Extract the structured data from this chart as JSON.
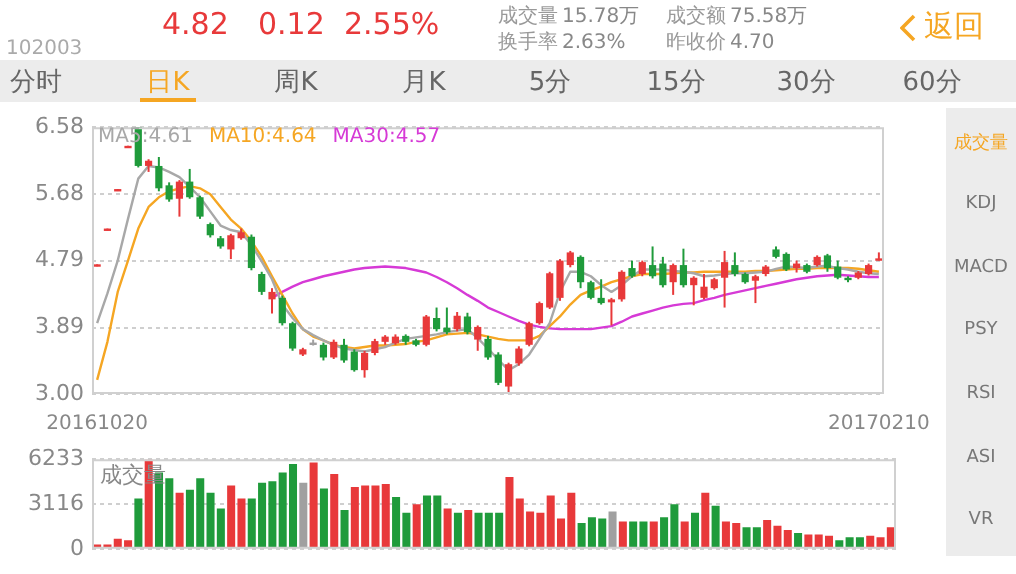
{
  "chart_data": [
    {
      "type": "candlestick",
      "categories": [
        "20161020",
        null,
        null,
        null,
        null,
        null,
        null,
        null,
        null,
        null,
        null,
        null,
        null,
        null,
        null,
        null,
        null,
        null,
        null,
        null,
        null,
        null,
        null,
        null,
        null,
        null,
        null,
        null,
        null,
        null,
        null,
        null,
        null,
        null,
        null,
        null,
        null,
        null,
        null,
        null,
        null,
        null,
        null,
        null,
        null,
        null,
        null,
        null,
        null,
        null,
        null,
        null,
        null,
        null,
        null,
        null,
        null,
        null,
        null,
        null,
        null,
        null,
        null,
        null,
        null,
        null,
        null,
        null,
        null,
        null,
        null,
        null,
        null,
        null,
        null,
        null,
        "20170210"
      ],
      "ohlc": [
        [
          4.72,
          4.74,
          4.72,
          4.74
        ],
        [
          5.2,
          5.22,
          5.2,
          5.22
        ],
        [
          5.73,
          5.75,
          5.73,
          5.75
        ],
        [
          6.31,
          6.33,
          6.31,
          6.33
        ],
        [
          6.58,
          6.58,
          6.04,
          6.06
        ],
        [
          6.06,
          6.15,
          5.98,
          6.13
        ],
        [
          6.06,
          6.18,
          5.72,
          5.76
        ],
        [
          5.8,
          5.84,
          5.58,
          5.61
        ],
        [
          5.62,
          5.87,
          5.38,
          5.85
        ],
        [
          5.85,
          6.02,
          5.62,
          5.64
        ],
        [
          5.64,
          5.66,
          5.35,
          5.38
        ],
        [
          5.28,
          5.3,
          5.1,
          5.13
        ],
        [
          5.09,
          5.12,
          4.95,
          4.98
        ],
        [
          4.94,
          5.15,
          4.81,
          5.13
        ],
        [
          5.09,
          5.22,
          5.07,
          5.17
        ],
        [
          5.11,
          5.14,
          4.66,
          4.69
        ],
        [
          4.61,
          4.64,
          4.33,
          4.37
        ],
        [
          4.27,
          4.42,
          4.08,
          4.37
        ],
        [
          4.29,
          4.32,
          3.92,
          3.95
        ],
        [
          3.95,
          3.97,
          3.58,
          3.61
        ],
        [
          3.53,
          3.62,
          3.51,
          3.6
        ],
        [
          3.69,
          3.73,
          3.65,
          3.69
        ],
        [
          3.66,
          3.69,
          3.45,
          3.49
        ],
        [
          3.49,
          3.73,
          3.47,
          3.7
        ],
        [
          3.66,
          3.74,
          3.42,
          3.45
        ],
        [
          3.57,
          3.6,
          3.3,
          3.32
        ],
        [
          3.32,
          3.58,
          3.22,
          3.55
        ],
        [
          3.55,
          3.74,
          3.52,
          3.71
        ],
        [
          3.7,
          3.79,
          3.66,
          3.77
        ],
        [
          3.68,
          3.8,
          3.66,
          3.77
        ],
        [
          3.78,
          3.8,
          3.66,
          3.7
        ],
        [
          3.72,
          3.74,
          3.64,
          3.66
        ],
        [
          3.66,
          4.06,
          3.64,
          4.04
        ],
        [
          4.02,
          4.16,
          3.84,
          3.87
        ],
        [
          3.89,
          4.16,
          3.8,
          3.83
        ],
        [
          3.87,
          4.1,
          3.84,
          4.05
        ],
        [
          4.04,
          4.09,
          3.8,
          3.83
        ],
        [
          3.73,
          3.92,
          3.58,
          3.9
        ],
        [
          3.74,
          3.78,
          3.46,
          3.49
        ],
        [
          3.53,
          3.56,
          3.12,
          3.15
        ],
        [
          3.1,
          3.42,
          3.02,
          3.4
        ],
        [
          3.41,
          3.64,
          3.38,
          3.61
        ],
        [
          3.66,
          3.97,
          3.64,
          3.95
        ],
        [
          3.95,
          4.24,
          3.93,
          4.22
        ],
        [
          4.16,
          4.64,
          4.14,
          4.62
        ],
        [
          4.29,
          4.81,
          4.25,
          4.79
        ],
        [
          4.73,
          4.92,
          4.7,
          4.9
        ],
        [
          4.84,
          4.86,
          4.42,
          4.5
        ],
        [
          4.5,
          4.52,
          4.27,
          4.29
        ],
        [
          4.29,
          4.54,
          4.2,
          4.22
        ],
        [
          4.23,
          4.29,
          3.92,
          4.27
        ],
        [
          4.27,
          4.66,
          4.24,
          4.64
        ],
        [
          4.69,
          4.79,
          4.56,
          4.58
        ],
        [
          4.61,
          4.79,
          4.58,
          4.77
        ],
        [
          4.73,
          4.98,
          4.55,
          4.58
        ],
        [
          4.75,
          4.84,
          4.43,
          4.46
        ],
        [
          4.5,
          4.75,
          4.33,
          4.73
        ],
        [
          4.73,
          4.95,
          4.43,
          4.46
        ],
        [
          4.46,
          4.58,
          4.19,
          4.56
        ],
        [
          4.29,
          4.61,
          4.27,
          4.44
        ],
        [
          4.42,
          4.56,
          4.4,
          4.54
        ],
        [
          4.56,
          4.92,
          4.16,
          4.77
        ],
        [
          4.73,
          4.9,
          4.58,
          4.61
        ],
        [
          4.61,
          4.63,
          4.48,
          4.5
        ],
        [
          4.52,
          4.6,
          4.22,
          4.58
        ],
        [
          4.61,
          4.73,
          4.58,
          4.71
        ],
        [
          4.94,
          4.98,
          4.82,
          4.84
        ],
        [
          4.88,
          4.9,
          4.65,
          4.67
        ],
        [
          4.69,
          4.79,
          4.63,
          4.75
        ],
        [
          4.73,
          4.75,
          4.62,
          4.64
        ],
        [
          4.73,
          4.86,
          4.71,
          4.84
        ],
        [
          4.86,
          4.88,
          4.64,
          4.69
        ],
        [
          4.71,
          4.79,
          4.54,
          4.56
        ],
        [
          4.56,
          4.58,
          4.5,
          4.53
        ],
        [
          4.56,
          4.65,
          4.54,
          4.63
        ],
        [
          4.61,
          4.75,
          4.59,
          4.73
        ],
        [
          4.8,
          4.9,
          4.79,
          4.82
        ]
      ],
      "colors": [
        "#e8393a",
        "#e8393a",
        "#e8393a",
        "#e8393a",
        "#1f9b3b",
        "#e8393a",
        "#1f9b3b",
        "#1f9b3b",
        "#e8393a",
        "#1f9b3b",
        "#1f9b3b",
        "#1f9b3b",
        "#1f9b3b",
        "#e8393a",
        "#e8393a",
        "#1f9b3b",
        "#1f9b3b",
        "#e8393a",
        "#1f9b3b",
        "#1f9b3b",
        "#e8393a",
        "#a0a0a0",
        "#1f9b3b",
        "#e8393a",
        "#1f9b3b",
        "#1f9b3b",
        "#e8393a",
        "#e8393a",
        "#e8393a",
        "#e8393a",
        "#1f9b3b",
        "#1f9b3b",
        "#e8393a",
        "#1f9b3b",
        "#1f9b3b",
        "#e8393a",
        "#1f9b3b",
        "#e8393a",
        "#1f9b3b",
        "#1f9b3b",
        "#e8393a",
        "#e8393a",
        "#e8393a",
        "#e8393a",
        "#e8393a",
        "#e8393a",
        "#e8393a",
        "#1f9b3b",
        "#1f9b3b",
        "#1f9b3b",
        "#e8393a",
        "#e8393a",
        "#1f9b3b",
        "#e8393a",
        "#1f9b3b",
        "#1f9b3b",
        "#e8393a",
        "#1f9b3b",
        "#e8393a",
        "#e8393a",
        "#e8393a",
        "#e8393a",
        "#1f9b3b",
        "#1f9b3b",
        "#e8393a",
        "#e8393a",
        "#1f9b3b",
        "#1f9b3b",
        "#e8393a",
        "#1f9b3b",
        "#e8393a",
        "#1f9b3b",
        "#1f9b3b",
        "#1f9b3b",
        "#e8393a",
        "#e8393a",
        "#e8393a"
      ],
      "series": [
        {
          "type": "line",
          "name": "MA5:4.61",
          "color": "#a8a8a8",
          "values": [
            3.95,
            4.35,
            4.79,
            5.35,
            5.89,
            6.06,
            6.04,
            5.98,
            5.91,
            5.78,
            5.64,
            5.45,
            5.26,
            5.2,
            5.17,
            5.0,
            4.78,
            4.54,
            4.2,
            4.02,
            3.87,
            3.79,
            3.72,
            3.66,
            3.61,
            3.59,
            3.57,
            3.6,
            3.63,
            3.69,
            3.74,
            3.76,
            3.78,
            3.8,
            3.83,
            3.85,
            3.87,
            3.75,
            3.61,
            3.46,
            3.32,
            3.4,
            3.53,
            3.74,
            3.95,
            4.37,
            4.64,
            4.64,
            4.58,
            4.46,
            4.37,
            4.46,
            4.58,
            4.67,
            4.67,
            4.67,
            4.65,
            4.64,
            4.62,
            4.58,
            4.59,
            4.61,
            4.62,
            4.62,
            4.63,
            4.64,
            4.68,
            4.71,
            4.7,
            4.69,
            4.71,
            4.72,
            4.69,
            4.67,
            4.64,
            4.62,
            4.61
          ]
        },
        {
          "type": "line",
          "name": "MA10:4.64",
          "color": "#f5a623",
          "values": [
            3.19,
            3.7,
            4.37,
            4.79,
            5.22,
            5.51,
            5.64,
            5.72,
            5.76,
            5.79,
            5.76,
            5.68,
            5.51,
            5.34,
            5.22,
            5.05,
            4.84,
            4.58,
            4.33,
            4.08,
            3.87,
            3.77,
            3.72,
            3.66,
            3.63,
            3.61,
            3.63,
            3.65,
            3.65,
            3.66,
            3.67,
            3.7,
            3.72,
            3.76,
            3.8,
            3.81,
            3.82,
            3.8,
            3.77,
            3.74,
            3.72,
            3.72,
            3.72,
            3.78,
            3.91,
            4.04,
            4.2,
            4.33,
            4.39,
            4.44,
            4.5,
            4.54,
            4.58,
            4.61,
            4.61,
            4.61,
            4.62,
            4.63,
            4.63,
            4.64,
            4.64,
            4.64,
            4.64,
            4.64,
            4.65,
            4.65,
            4.66,
            4.67,
            4.68,
            4.68,
            4.69,
            4.69,
            4.69,
            4.69,
            4.68,
            4.66,
            4.64
          ]
        },
        {
          "type": "line",
          "name": "MA30:4.57",
          "color": "#d63ad6",
          "values": [
            null,
            null,
            null,
            null,
            null,
            null,
            null,
            null,
            null,
            null,
            null,
            null,
            null,
            null,
            null,
            null,
            null,
            4.29,
            4.37,
            4.44,
            4.5,
            4.54,
            4.58,
            4.61,
            4.64,
            4.67,
            4.69,
            4.7,
            4.71,
            4.7,
            4.69,
            4.66,
            4.63,
            4.57,
            4.5,
            4.42,
            4.33,
            4.25,
            4.16,
            4.1,
            4.04,
            3.98,
            3.93,
            3.9,
            3.88,
            3.87,
            3.87,
            3.87,
            3.87,
            3.89,
            3.91,
            3.97,
            4.04,
            4.08,
            4.12,
            4.16,
            4.19,
            4.21,
            4.22,
            4.26,
            4.29,
            4.33,
            4.36,
            4.39,
            4.42,
            4.45,
            4.48,
            4.51,
            4.54,
            4.56,
            4.58,
            4.59,
            4.6,
            4.59,
            4.58,
            4.57,
            4.57
          ]
        }
      ],
      "ylim": [
        3.0,
        6.58
      ],
      "yticks": [
        {
          "value": 3.0,
          "label": "3.00"
        },
        3.89,
        4.79,
        5.68,
        6.58
      ],
      "grid": "y",
      "legend": "top left",
      "marker": "none",
      "annotations": [
        "102003",
        "4.82",
        "0.12",
        "2.55%",
        "成交量",
        "15.78万",
        "换手率",
        "2.63%",
        "成交额",
        "75.58万",
        "昨收价",
        "4.70",
        "返回",
        "分时",
        "日K",
        "周K",
        "月K",
        "5分",
        "15分",
        "30分",
        "60分",
        "成交量",
        "KDJ",
        "MACD",
        "PSY",
        "RSI",
        "ASI",
        "VR"
      ]
    },
    {
      "type": "bar",
      "title": "成交量",
      "categories": [
        null,
        null,
        null,
        null,
        null,
        null,
        null,
        null,
        null,
        null,
        null,
        null,
        null,
        null,
        null,
        null,
        null,
        null,
        null,
        null,
        null,
        null,
        null,
        null,
        null,
        null,
        null,
        null,
        null,
        null,
        null,
        null,
        null,
        null,
        null,
        null,
        null,
        null,
        null,
        null,
        null,
        null,
        null,
        null,
        null,
        null,
        null,
        null,
        null,
        null,
        null,
        null,
        null,
        null,
        null,
        null,
        null,
        null,
        null,
        null,
        null,
        null,
        null,
        null,
        null,
        null,
        null,
        null,
        null,
        null,
        null,
        null,
        null,
        null,
        null,
        null,
        null,
        null
      ],
      "values": [
        300,
        300,
        700,
        600,
        3500,
        6200,
        5300,
        4900,
        3900,
        4100,
        4900,
        3900,
        2800,
        4400,
        3500,
        3500,
        4600,
        4700,
        5300,
        5900,
        4600,
        6000,
        4200,
        5200,
        2700,
        4300,
        4400,
        4400,
        4500,
        3600,
        2500,
        3100,
        3700,
        3700,
        2800,
        2500,
        2700,
        2500,
        2500,
        2500,
        5000,
        3500,
        2600,
        2500,
        3700,
        2100,
        3900,
        1800,
        2200,
        2100,
        2600,
        1900,
        1900,
        1900,
        1900,
        2200,
        3100,
        1900,
        2500,
        3900,
        3000,
        1900,
        1800,
        1500,
        1500,
        2000,
        1600,
        1300,
        1100,
        1000,
        1000,
        900,
        600,
        800,
        800,
        900,
        800,
        1500
      ],
      "colors": [
        "#e8393a",
        "#e8393a",
        "#e8393a",
        "#e8393a",
        "#1f9b3b",
        "#e8393a",
        "#1f9b3b",
        "#1f9b3b",
        "#e8393a",
        "#1f9b3b",
        "#1f9b3b",
        "#1f9b3b",
        "#1f9b3b",
        "#e8393a",
        "#e8393a",
        "#1f9b3b",
        "#1f9b3b",
        "#1f9b3b",
        "#1f9b3b",
        "#1f9b3b",
        "#a0a0a0",
        "#e8393a",
        "#1f9b3b",
        "#e8393a",
        "#1f9b3b",
        "#e8393a",
        "#e8393a",
        "#e8393a",
        "#e8393a",
        "#1f9b3b",
        "#1f9b3b",
        "#e8393a",
        "#1f9b3b",
        "#1f9b3b",
        "#e8393a",
        "#1f9b3b",
        "#e8393a",
        "#1f9b3b",
        "#1f9b3b",
        "#1f9b3b",
        "#e8393a",
        "#e8393a",
        "#e8393a",
        "#e8393a",
        "#e8393a",
        "#e8393a",
        "#e8393a",
        "#1f9b3b",
        "#1f9b3b",
        "#1f9b3b",
        "#a0a0a0",
        "#e8393a",
        "#1f9b3b",
        "#1f9b3b",
        "#e8393a",
        "#1f9b3b",
        "#1f9b3b",
        "#e8393a",
        "#1f9b3b",
        "#e8393a",
        "#1f9b3b",
        "#e8393a",
        "#e8393a",
        "#1f9b3b",
        "#1f9b3b",
        "#e8393a",
        "#e8393a",
        "#e8393a",
        "#1f9b3b",
        "#e8393a",
        "#e8393a",
        "#e8393a",
        "#1f9b3b",
        "#1f9b3b",
        "#1f9b3b",
        "#e8393a",
        "#e8393a",
        "#e8393a"
      ],
      "ylim": [
        0,
        6233
      ],
      "yticks": [
        0,
        3116,
        6233
      ],
      "grid": "y",
      "tick_labels": "y"
    }
  ]
}
